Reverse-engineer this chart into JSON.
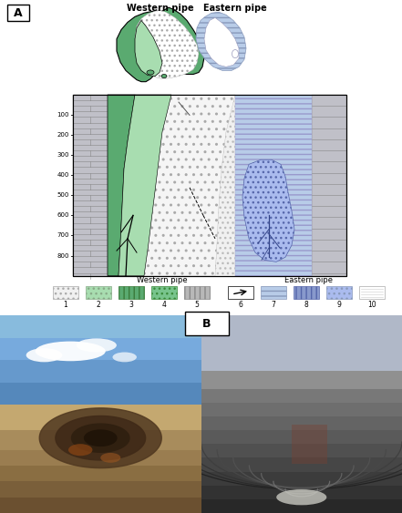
{
  "western_pipe_label": "Western pipe",
  "eastern_pipe_label": "Eastern pipe",
  "label_A": "A",
  "label_B": "B",
  "depth_ticks": [
    100,
    200,
    300,
    400,
    500,
    600,
    700,
    800
  ],
  "legend_western": "Western pipe",
  "legend_eastern": "Eastern pipe",
  "colors": {
    "white": "#ffffff",
    "green_outer": "#5aaa70",
    "green_light": "#a8ddb0",
    "green_medium": "#78c48c",
    "blue_light": "#c0d8f0",
    "blue_medium": "#8899cc",
    "blue_stripe": "#b8cce8",
    "gray_brick": "#aaaaaa",
    "gray_dark": "#888888",
    "dot_bg": "#f0f0f0",
    "background": "#ffffff"
  }
}
